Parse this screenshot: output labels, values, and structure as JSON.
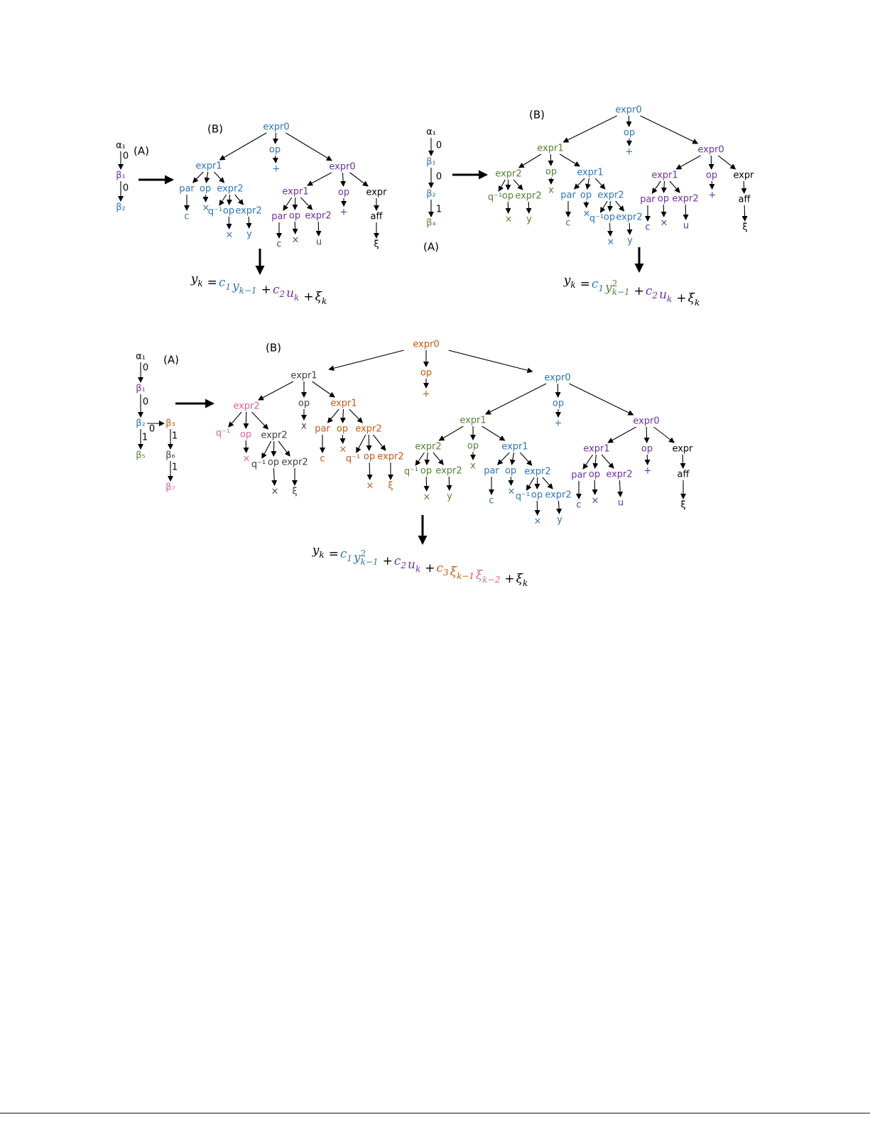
{
  "panels": [
    {
      "label_a": "(A)",
      "label_b": "(B)",
      "chain": {
        "nodes": [
          {
            "label": "α₁",
            "color": "#000000"
          },
          {
            "label": "β₁",
            "color": "#7030a0"
          },
          {
            "label": "β₂",
            "color": "#2e75b6"
          }
        ],
        "edges": [
          {
            "label": "0"
          },
          {
            "label": "0"
          }
        ]
      },
      "tree": {
        "nodes": [
          {
            "label": "expr0",
            "color": "#2e75b6"
          },
          {
            "label": "op",
            "color": "#2e75b6"
          },
          {
            "label": "+",
            "color": "#2e75b6"
          },
          {
            "label": "expr1",
            "color": "#2e75b6"
          },
          {
            "label": "expr0",
            "color": "#7030a0"
          },
          {
            "label": "par",
            "color": "#2e75b6"
          },
          {
            "label": "op",
            "color": "#2e75b6"
          },
          {
            "label": "expr2",
            "color": "#2e75b6"
          },
          {
            "label": "c",
            "color": "#2e75b6"
          },
          {
            "label": "×",
            "color": "#2e75b6"
          },
          {
            "label": "q⁻¹",
            "color": "#2e75b6"
          },
          {
            "label": "op",
            "color": "#2e75b6"
          },
          {
            "label": "expr2",
            "color": "#2e75b6"
          },
          {
            "label": "×",
            "color": "#2e75b6"
          },
          {
            "label": "y",
            "color": "#2e75b6"
          },
          {
            "label": "expr1",
            "color": "#7030a0"
          },
          {
            "label": "op",
            "color": "#7030a0"
          },
          {
            "label": "expr",
            "color": "#000000"
          },
          {
            "label": "+",
            "color": "#7030a0"
          },
          {
            "label": "aff",
            "color": "#000000"
          },
          {
            "label": "ξ",
            "color": "#000000"
          },
          {
            "label": "par",
            "color": "#7030a0"
          },
          {
            "label": "op",
            "color": "#7030a0"
          },
          {
            "label": "expr2",
            "color": "#7030a0"
          },
          {
            "label": "c",
            "color": "#7030a0"
          },
          {
            "label": "×",
            "color": "#7030a0"
          },
          {
            "label": "u",
            "color": "#7030a0"
          }
        ]
      },
      "equation": [
        {
          "text": "y",
          "sub": "k",
          "color": "#000000"
        },
        {
          "text": "=",
          "color": "#000000"
        },
        {
          "text": "c",
          "sub": "1",
          "color": "#2e75b6"
        },
        {
          "text": "y",
          "sub": "k−1",
          "color": "#2e75b6"
        },
        {
          "text": "+",
          "color": "#000000"
        },
        {
          "text": "c",
          "sub": "2",
          "color": "#7030a0"
        },
        {
          "text": "u",
          "sub": "k",
          "color": "#7030a0"
        },
        {
          "text": "+",
          "color": "#000000"
        },
        {
          "text": "ξ",
          "sub": "k",
          "color": "#000000"
        }
      ]
    },
    {
      "label_a": "(A)",
      "label_b": "(B)",
      "chain": {
        "nodes": [
          {
            "label": "α₁",
            "color": "#000000"
          },
          {
            "label": "β₁",
            "color": "#2e75b6"
          },
          {
            "label": "β₂",
            "color": "#2e75b6"
          },
          {
            "label": "β₄",
            "color": "#548235"
          }
        ],
        "edges": [
          {
            "label": "0"
          },
          {
            "label": "0"
          },
          {
            "label": "1"
          }
        ]
      },
      "tree": {
        "nodes": [
          {
            "label": "expr0",
            "color": "#2e75b6"
          },
          {
            "label": "op",
            "color": "#2e75b6"
          },
          {
            "label": "+",
            "color": "#2e75b6"
          },
          {
            "label": "expr1",
            "color": "#548235"
          },
          {
            "label": "expr0",
            "color": "#7030a0"
          },
          {
            "label": "expr2",
            "color": "#548235"
          },
          {
            "label": "op",
            "color": "#548235"
          },
          {
            "label": "expr1",
            "color": "#2e75b6"
          },
          {
            "label": "x",
            "color": "#548235"
          },
          {
            "label": "q⁻¹",
            "color": "#548235"
          },
          {
            "label": "op",
            "color": "#548235"
          },
          {
            "label": "expr2",
            "color": "#548235"
          },
          {
            "label": "×",
            "color": "#548235"
          },
          {
            "label": "y",
            "color": "#548235"
          },
          {
            "label": "par",
            "color": "#2e75b6"
          },
          {
            "label": "op",
            "color": "#2e75b6"
          },
          {
            "label": "expr2",
            "color": "#2e75b6"
          },
          {
            "label": "c",
            "color": "#2e75b6"
          },
          {
            "label": "×",
            "color": "#2e75b6"
          },
          {
            "label": "q⁻¹",
            "color": "#2e75b6"
          },
          {
            "label": "op",
            "color": "#2e75b6"
          },
          {
            "label": "expr2",
            "color": "#2e75b6"
          },
          {
            "label": "×",
            "color": "#2e75b6"
          },
          {
            "label": "y",
            "color": "#2e75b6"
          },
          {
            "label": "expr1",
            "color": "#7030a0"
          },
          {
            "label": "op",
            "color": "#7030a0"
          },
          {
            "label": "expr",
            "color": "#000000"
          },
          {
            "label": "+",
            "color": "#7030a0"
          },
          {
            "label": "aff",
            "color": "#000000"
          },
          {
            "label": "ξ",
            "color": "#000000"
          },
          {
            "label": "par",
            "color": "#7030a0"
          },
          {
            "label": "op",
            "color": "#7030a0"
          },
          {
            "label": "expr2",
            "color": "#7030a0"
          },
          {
            "label": "c",
            "color": "#7030a0"
          },
          {
            "label": "×",
            "color": "#7030a0"
          },
          {
            "label": "u",
            "color": "#7030a0"
          }
        ]
      },
      "equation": [
        {
          "text": "y",
          "sub": "k",
          "color": "#000000"
        },
        {
          "text": "=",
          "color": "#000000"
        },
        {
          "text": "c",
          "sub": "1",
          "color": "#2e75b6"
        },
        {
          "text": "y",
          "sup": "2",
          "sub": "k−1",
          "color": "#548235"
        },
        {
          "text": "+",
          "color": "#000000"
        },
        {
          "text": "c",
          "sub": "2",
          "color": "#7030a0"
        },
        {
          "text": "u",
          "sub": "k",
          "color": "#7030a0"
        },
        {
          "text": "+",
          "color": "#000000"
        },
        {
          "text": "ξ",
          "sub": "k",
          "color": "#000000"
        }
      ]
    },
    {
      "label_a": "(A)",
      "label_b": "(B)",
      "chain": {
        "nodes": [
          {
            "label": "α₁",
            "color": "#000000"
          },
          {
            "label": "β₁",
            "color": "#7030a0"
          },
          {
            "label": "β₂",
            "color": "#2e75b6"
          },
          {
            "label": "β₃",
            "color": "#c55a11"
          },
          {
            "label": "β₅",
            "color": "#548235"
          },
          {
            "label": "β₆",
            "color": "#404040"
          },
          {
            "label": "β₇",
            "color": "#e0609a"
          }
        ],
        "edges": [
          {
            "label": "0"
          },
          {
            "label": "0"
          },
          {
            "label": "0"
          },
          {
            "label": "1"
          },
          {
            "label": "1"
          },
          {
            "label": "1"
          }
        ]
      },
      "tree": {
        "nodes": [
          {
            "label": "expr0",
            "color": "#c55a11"
          },
          {
            "label": "op",
            "color": "#c55a11"
          },
          {
            "label": "+",
            "color": "#c55a11"
          },
          {
            "label": "expr1",
            "color": "#404040"
          },
          {
            "label": "expr0",
            "color": "#2e75b6"
          },
          {
            "label": "expr2",
            "color": "#e0609a"
          },
          {
            "label": "op",
            "color": "#404040"
          },
          {
            "label": "expr1",
            "color": "#c55a11"
          },
          {
            "label": "x",
            "color": "#404040"
          },
          {
            "label": "q⁻¹",
            "color": "#e0609a"
          },
          {
            "label": "op",
            "color": "#e0609a"
          },
          {
            "label": "expr2",
            "color": "#404040"
          },
          {
            "label": "×",
            "color": "#e0609a"
          },
          {
            "label": "q⁻¹",
            "color": "#404040"
          },
          {
            "label": "op",
            "color": "#404040"
          },
          {
            "label": "expr2",
            "color": "#404040"
          },
          {
            "label": "×",
            "color": "#404040"
          },
          {
            "label": "ξ",
            "color": "#404040"
          },
          {
            "label": "par",
            "color": "#c55a11"
          },
          {
            "label": "op",
            "color": "#c55a11"
          },
          {
            "label": "expr2",
            "color": "#c55a11"
          },
          {
            "label": "c",
            "color": "#c55a11"
          },
          {
            "label": "×",
            "color": "#c55a11"
          },
          {
            "label": "q⁻¹",
            "color": "#c55a11"
          },
          {
            "label": "op",
            "color": "#c55a11"
          },
          {
            "label": "expr2",
            "color": "#c55a11"
          },
          {
            "label": "×",
            "color": "#c55a11"
          },
          {
            "label": "ξ",
            "color": "#c55a11"
          },
          {
            "label": "expr1",
            "color": "#548235"
          },
          {
            "label": "op",
            "color": "#2e75b6"
          },
          {
            "label": "expr0",
            "color": "#7030a0"
          },
          {
            "label": "+",
            "color": "#2e75b6"
          },
          {
            "label": "expr2",
            "color": "#548235"
          },
          {
            "label": "op",
            "color": "#548235"
          },
          {
            "label": "expr1",
            "color": "#2e75b6"
          },
          {
            "label": "x",
            "color": "#548235"
          },
          {
            "label": "q⁻¹",
            "color": "#548235"
          },
          {
            "label": "op",
            "color": "#548235"
          },
          {
            "label": "expr2",
            "color": "#548235"
          },
          {
            "label": "×",
            "color": "#548235"
          },
          {
            "label": "y",
            "color": "#548235"
          },
          {
            "label": "par",
            "color": "#2e75b6"
          },
          {
            "label": "op",
            "color": "#2e75b6"
          },
          {
            "label": "expr2",
            "color": "#2e75b6"
          },
          {
            "label": "c",
            "color": "#2e75b6"
          },
          {
            "label": "×",
            "color": "#2e75b6"
          },
          {
            "label": "q⁻¹",
            "color": "#2e75b6"
          },
          {
            "label": "op",
            "color": "#2e75b6"
          },
          {
            "label": "expr2",
            "color": "#2e75b6"
          },
          {
            "label": "×",
            "color": "#2e75b6"
          },
          {
            "label": "y",
            "color": "#2e75b6"
          },
          {
            "label": "expr1",
            "color": "#7030a0"
          },
          {
            "label": "op",
            "color": "#7030a0"
          },
          {
            "label": "expr",
            "color": "#000000"
          },
          {
            "label": "+",
            "color": "#7030a0"
          },
          {
            "label": "aff",
            "color": "#000000"
          },
          {
            "label": "ξ",
            "color": "#000000"
          },
          {
            "label": "par",
            "color": "#7030a0"
          },
          {
            "label": "op",
            "color": "#7030a0"
          },
          {
            "label": "expr2",
            "color": "#7030a0"
          },
          {
            "label": "c",
            "color": "#7030a0"
          },
          {
            "label": "×",
            "color": "#7030a0"
          },
          {
            "label": "u",
            "color": "#7030a0"
          }
        ]
      },
      "equation": [
        {
          "text": "y",
          "sub": "k",
          "color": "#000000"
        },
        {
          "text": "=",
          "color": "#000000"
        },
        {
          "text": "c",
          "sub": "1",
          "color": "#2e75b6"
        },
        {
          "text": "y",
          "sup": "2",
          "sub": "k−1",
          "color": "#2e75b6"
        },
        {
          "text": "+",
          "color": "#000000"
        },
        {
          "text": "c",
          "sub": "2",
          "color": "#7030a0"
        },
        {
          "text": "u",
          "sub": "k",
          "color": "#7030a0"
        },
        {
          "text": "+",
          "color": "#000000"
        },
        {
          "text": "c",
          "sub": "3",
          "color": "#c55a11"
        },
        {
          "text": "ξ",
          "sub": "k−1",
          "color": "#c55a11"
        },
        {
          "text": "ξ",
          "sub": "k−2",
          "color": "#e0609a"
        },
        {
          "text": "+",
          "color": "#000000"
        },
        {
          "text": "ξ",
          "sub": "k",
          "color": "#000000"
        }
      ]
    }
  ]
}
